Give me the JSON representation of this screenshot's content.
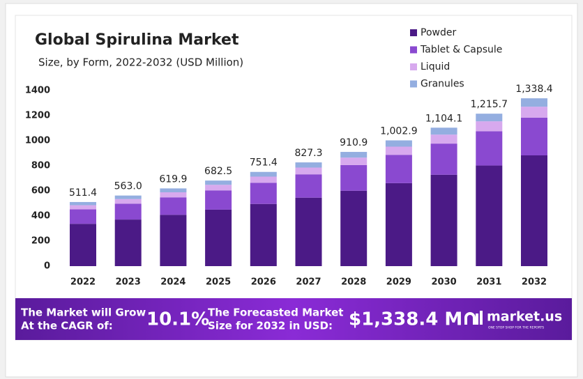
{
  "chart_data": {
    "type": "stacked_bar",
    "title": "Global Spirulina Market",
    "subtitle": "Size, by Form, 2022-2032 (USD Million)",
    "categories": [
      "2022",
      "2023",
      "2024",
      "2025",
      "2026",
      "2027",
      "2028",
      "2029",
      "2030",
      "2031",
      "2032"
    ],
    "series": [
      {
        "name": "Powder",
        "color": "#4b1a86",
        "values": [
          337.5,
          371.6,
          409.1,
          450.5,
          495.9,
          546.0,
          601.2,
          661.9,
          728.7,
          802.4,
          883.3
        ]
      },
      {
        "name": "Tablet & Capsule",
        "color": "#8a49d0",
        "values": [
          115.1,
          126.7,
          139.5,
          153.6,
          169.1,
          186.1,
          205.0,
          225.7,
          248.4,
          273.5,
          301.1
        ]
      },
      {
        "name": "Liquid",
        "color": "#d7a9ee",
        "values": [
          33.2,
          36.6,
          40.3,
          44.4,
          48.8,
          53.8,
          59.2,
          65.2,
          71.8,
          79.0,
          87.0
        ]
      },
      {
        "name": "Granules",
        "color": "#94aee0",
        "values": [
          25.6,
          28.1,
          31.0,
          34.0,
          37.6,
          41.4,
          45.5,
          50.1,
          55.2,
          60.8,
          67.0
        ]
      }
    ],
    "totals": [
      511.4,
      563.0,
      619.9,
      682.5,
      751.4,
      827.3,
      910.9,
      1002.9,
      1104.1,
      1215.7,
      1338.4
    ],
    "total_labels": [
      "511.4",
      "563.0",
      "619.9",
      "682.5",
      "751.4",
      "827.3",
      "910.9",
      "1,002.9",
      "1,104.1",
      "1,215.7",
      "1,338.4"
    ],
    "ylim": [
      0,
      1400
    ],
    "yticks": [
      0,
      200,
      400,
      600,
      800,
      1000,
      1200,
      1400
    ],
    "grid": false,
    "legend": "top-right",
    "banner": {
      "cagr_text": [
        "The Market will Grow",
        "At the CAGR of:"
      ],
      "cagr": "10.1%",
      "forecast_text": [
        "The Forecasted Market",
        "Size for 2032 in USD:"
      ],
      "forecast": "$1,338.4 M",
      "brand": "market.us",
      "tagline": "ONE STOP SHOP FOR THE REPORTS"
    }
  }
}
